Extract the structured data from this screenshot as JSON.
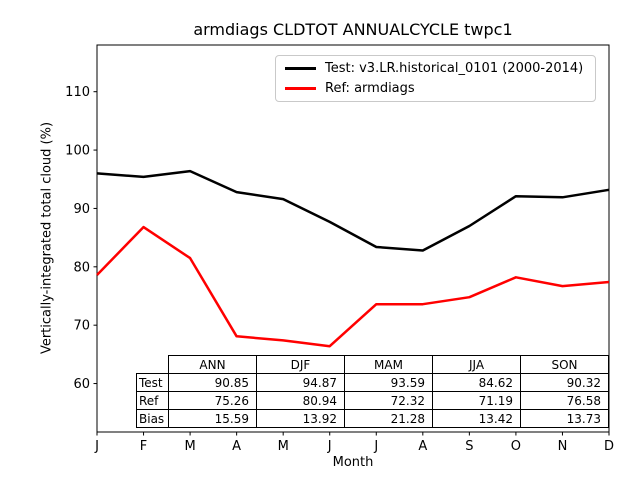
{
  "window": {
    "background": "#ffffff"
  },
  "chart_data": {
    "type": "line",
    "title": "armdiags CLDTOT ANNUALCYCLE twpc1",
    "xlabel": "Month",
    "ylabel": "Vertically-integrated total cloud (%)",
    "x_tick_labels": [
      "J",
      "F",
      "M",
      "A",
      "M",
      "J",
      "J",
      "A",
      "S",
      "O",
      "N",
      "D"
    ],
    "y_ticks": [
      60,
      70,
      80,
      90,
      100,
      110
    ],
    "ylim": [
      51.7,
      118.0
    ],
    "grid": false,
    "legend_position": "upper right",
    "series": [
      {
        "name": "Test: v3.LR.historical_0101 (2000-2014)",
        "color": "#000000",
        "values": [
          96.0,
          95.4,
          96.4,
          92.8,
          91.6,
          87.7,
          83.4,
          82.8,
          87.0,
          92.1,
          91.9,
          93.2
        ]
      },
      {
        "name": "Ref: armdiags",
        "color": "#ff0000",
        "values": [
          78.6,
          86.8,
          81.5,
          68.1,
          67.4,
          66.4,
          73.6,
          73.6,
          74.8,
          78.2,
          76.7,
          77.4
        ]
      }
    ],
    "table": {
      "columns": [
        "ANN",
        "DJF",
        "MAM",
        "JJA",
        "SON"
      ],
      "rows": [
        {
          "label": "Test",
          "values": [
            "90.85",
            "94.87",
            "93.59",
            "84.62",
            "90.32"
          ]
        },
        {
          "label": "Ref",
          "values": [
            "75.26",
            "80.94",
            "72.32",
            "71.19",
            "76.58"
          ]
        },
        {
          "label": "Bias",
          "values": [
            "15.59",
            "13.92",
            "21.28",
            "13.42",
            "13.73"
          ]
        }
      ]
    }
  }
}
